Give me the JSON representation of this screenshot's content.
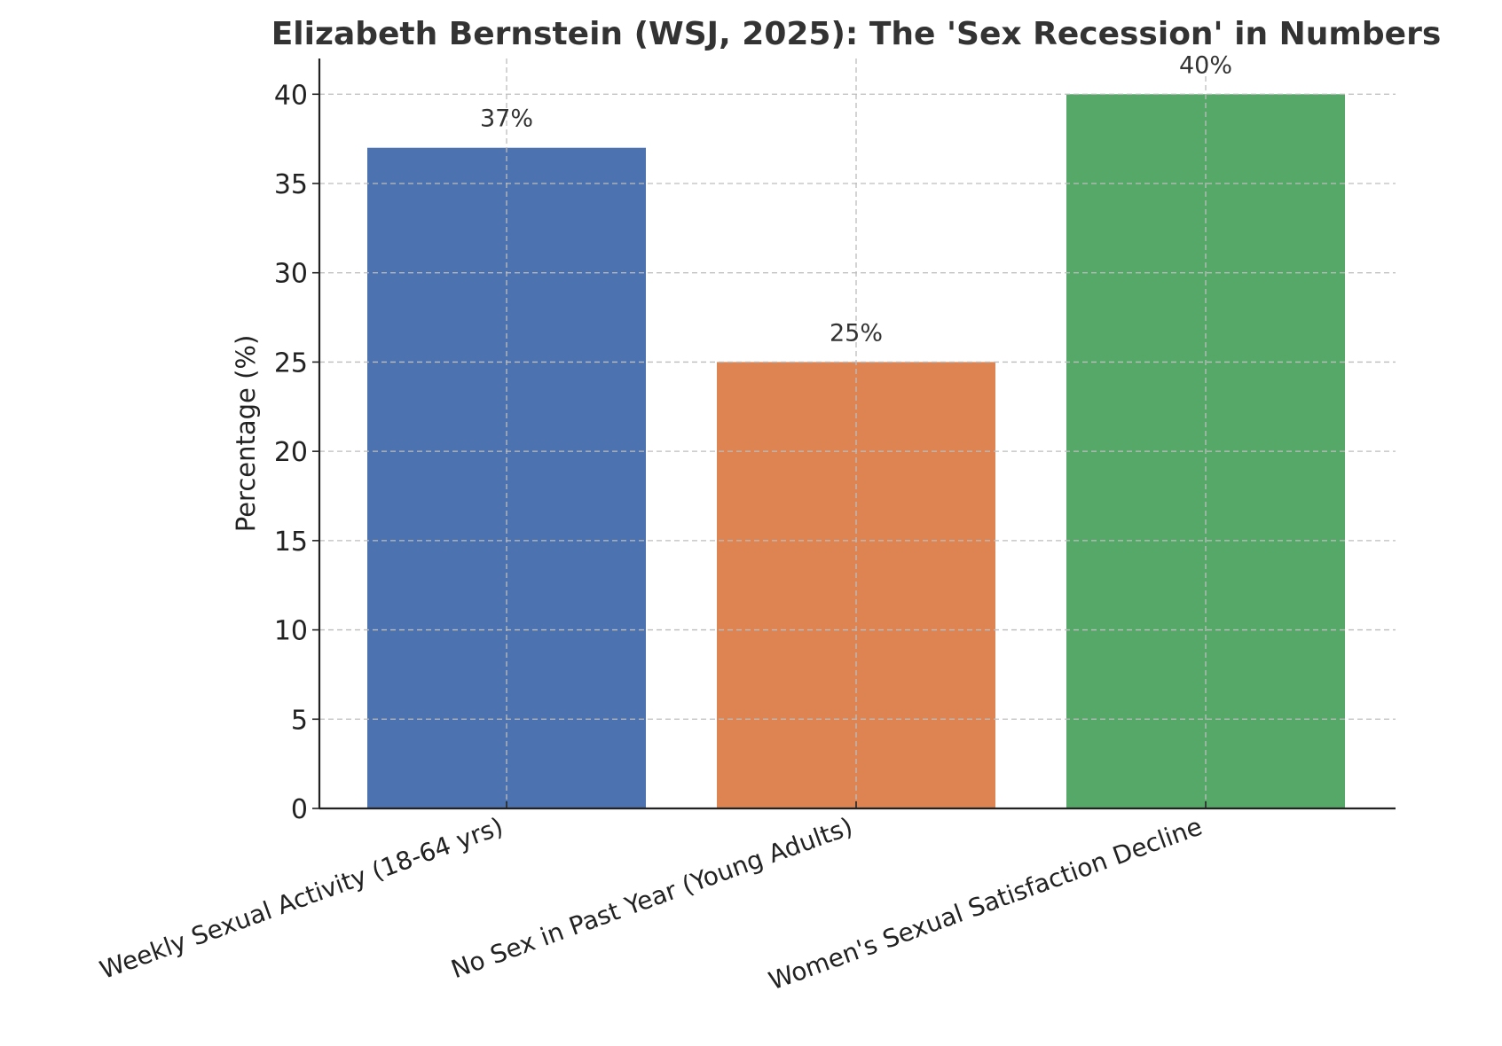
{
  "chart_data": {
    "type": "bar",
    "title": "Elizabeth Bernstein (WSJ, 2025): The 'Sex Recession' in Numbers",
    "xlabel": "",
    "ylabel": "Percentage (%)",
    "ylim": [
      0,
      42
    ],
    "yticks": [
      0,
      5,
      10,
      15,
      20,
      25,
      30,
      35,
      40
    ],
    "categories": [
      "Weekly Sexual Activity (18-64 yrs)",
      "No Sex in Past Year (Young Adults)",
      "Women's Sexual Satisfaction Decline"
    ],
    "values": [
      37,
      25,
      40
    ],
    "data_labels": [
      "37%",
      "25%",
      "40%"
    ],
    "colors": [
      "#4c72b0",
      "#dd8452",
      "#55a868"
    ],
    "grid": true,
    "legend": "none"
  }
}
